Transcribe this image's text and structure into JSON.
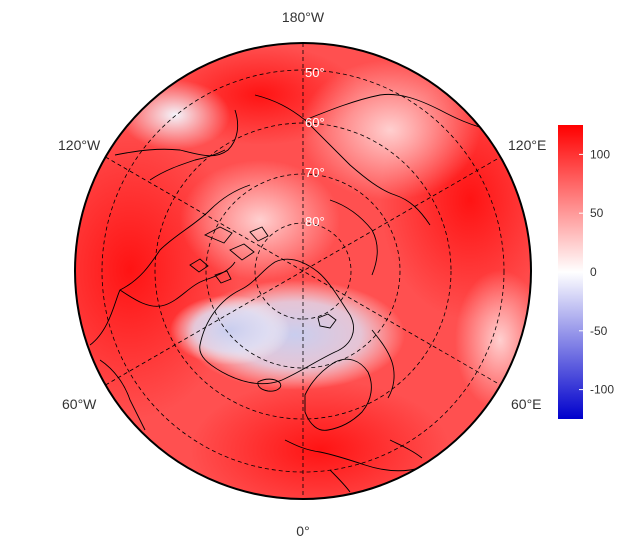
{
  "map": {
    "projection": "north-polar-stereographic",
    "longitude_labels": {
      "top": "180°W",
      "bottom": "0°",
      "upper_left": "120°W",
      "upper_right": "120°E",
      "lower_left": "60°W",
      "lower_right": "60°E"
    },
    "latitude_labels": [
      "50°",
      "60°",
      "70°",
      "80°"
    ],
    "graticule": "dashed",
    "coastlines": "black"
  },
  "colorbar": {
    "ticks": [
      "100",
      "50",
      "0",
      "-50",
      "-100"
    ],
    "range": [
      -125,
      125
    ],
    "colors": {
      "high": "#ff0000",
      "mid": "#ffffff",
      "low": "#0000cc"
    }
  },
  "colors": {
    "field_base": "#ff4d4d",
    "strong_red": "#ff1a1a",
    "weak_blue": "#cfd4f2"
  }
}
